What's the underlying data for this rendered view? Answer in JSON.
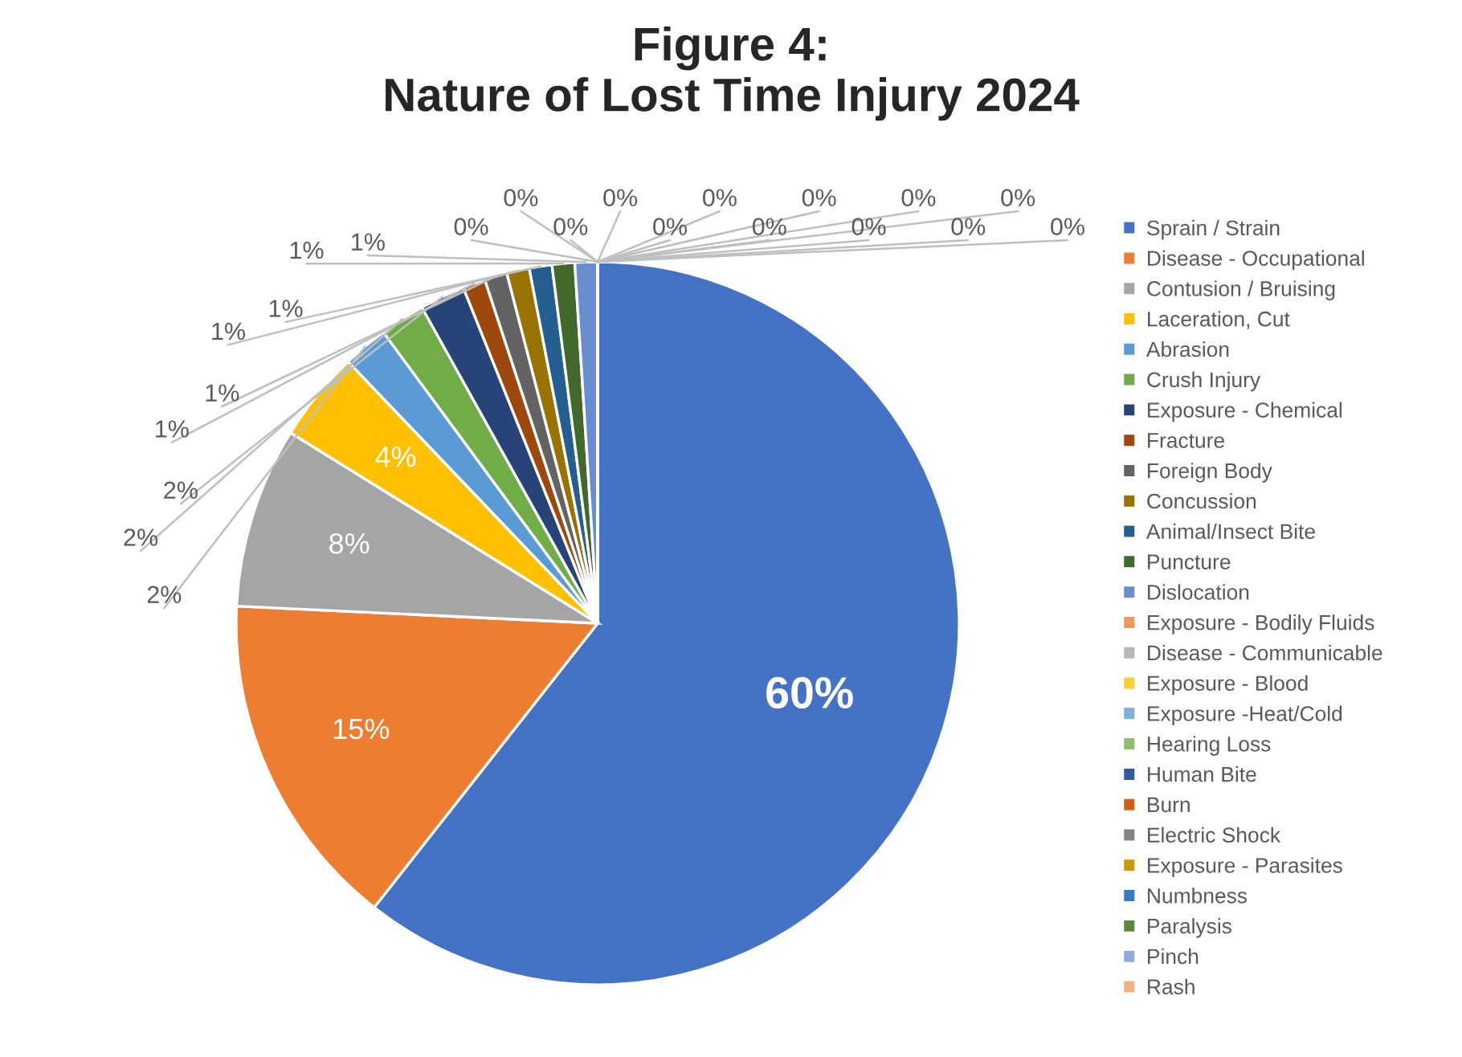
{
  "chart_data": {
    "type": "pie",
    "title": "Figure 4:\nNature of Lost Time Injury 2024",
    "categories": [
      "Sprain / Strain",
      "Disease - Occupational",
      "Contusion / Bruising",
      "Laceration, Cut",
      "Abrasion",
      "Crush Injury",
      "Exposure - Chemical",
      "Fracture",
      "Foreign Body",
      "Concussion",
      "Animal/Insect Bite",
      "Puncture",
      "Dislocation",
      "Exposure - Bodily Fluids",
      "Disease - Communicable",
      "Exposure - Blood",
      "Exposure -Heat/Cold",
      "Hearing Loss",
      "Human Bite",
      "Burn",
      "Electric Shock",
      "Exposure - Parasites",
      "Numbness",
      "Paralysis",
      "Pinch",
      "Rash"
    ],
    "values": [
      60,
      15,
      8,
      4,
      2,
      2,
      2,
      1,
      1,
      1,
      1,
      1,
      1,
      0,
      0,
      0,
      0,
      0,
      0,
      0,
      0,
      0,
      0,
      0,
      0,
      0
    ],
    "value_labels": [
      "60%",
      "15%",
      "8%",
      "4%",
      "2%",
      "2%",
      "2%",
      "1%",
      "1%",
      "1%",
      "1%",
      "1%",
      "1%",
      "0%",
      "0%",
      "0%",
      "0%",
      "0%",
      "0%",
      "0%",
      "0%",
      "0%",
      "0%",
      "0%",
      "0%",
      "0%"
    ],
    "colors": [
      "#4472c4",
      "#ed7d31",
      "#a5a5a5",
      "#ffc000",
      "#5b9bd5",
      "#70ad47",
      "#264478",
      "#9e480e",
      "#636363",
      "#997300",
      "#255e91",
      "#43682b",
      "#698ed0",
      "#f1975a",
      "#b7b7b7",
      "#ffcd33",
      "#7cafdd",
      "#8cc168",
      "#335aa1",
      "#d26012",
      "#848484",
      "#cc9a00",
      "#327dc2",
      "#5a8a39",
      "#8faadc",
      "#f4b183"
    ],
    "legend": "right"
  }
}
